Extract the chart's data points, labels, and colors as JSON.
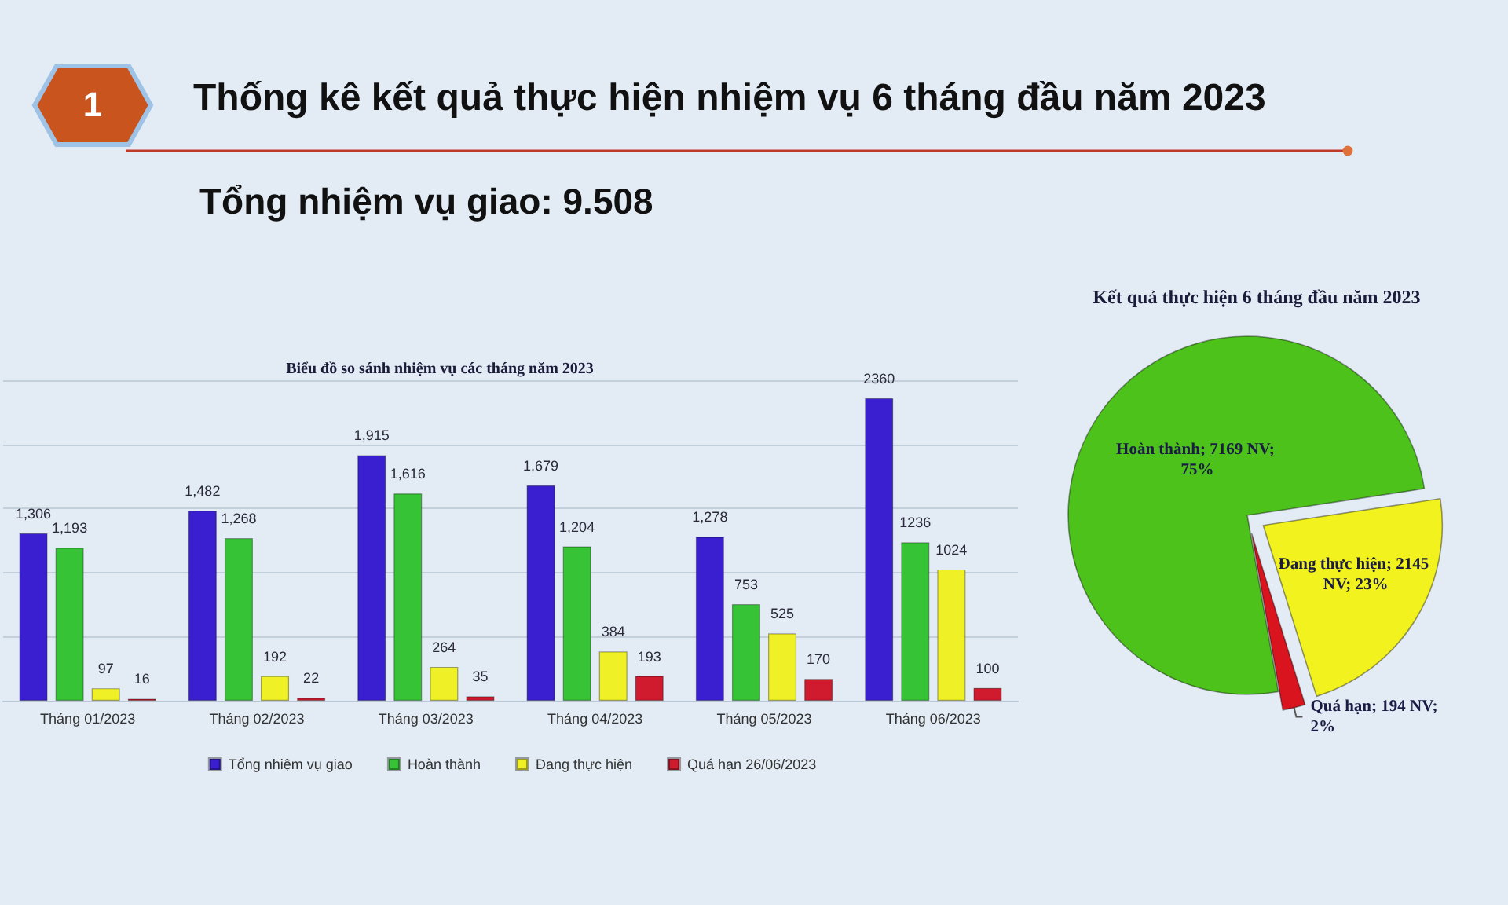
{
  "chart_data": [
    {
      "type": "other",
      "title": "Thống kê kết quả thực hiện nhiệm vụ 6 tháng đầu năm 2023",
      "subtitle": "Tổng nhiệm vụ giao: 9.508",
      "annotations": [
        "1"
      ]
    },
    {
      "type": "bar",
      "title": "Biểu đồ so sánh nhiệm vụ các tháng năm 2023",
      "categories": [
        "Tháng 01/2023",
        "Tháng 02/2023",
        "Tháng 03/2023",
        "Tháng 04/2023",
        "Tháng 05/2023",
        "Tháng 06/2023"
      ],
      "series": [
        {
          "name": "Tổng nhiệm vụ giao",
          "color": "#3a1fd1",
          "values": [
            1306,
            1482,
            1915,
            1679,
            1278,
            2360
          ],
          "value_labels": [
            "1,306",
            "1,482",
            "1,915",
            "1,679",
            "1,278",
            "2360"
          ]
        },
        {
          "name": "Hoàn thành",
          "color": "#36c436",
          "values": [
            1193,
            1268,
            1616,
            1204,
            753,
            1236
          ],
          "value_labels": [
            "1,193",
            "1,268",
            "1,616",
            "1,204",
            "753",
            "1236"
          ]
        },
        {
          "name": "Đang thực hiện",
          "color": "#f0f026",
          "values": [
            97,
            192,
            264,
            384,
            525,
            1024
          ],
          "value_labels": [
            "97",
            "192",
            "264",
            "384",
            "525",
            "1024"
          ]
        },
        {
          "name": "Quá hạn 26/06/2023",
          "color": "#cf1b2d",
          "values": [
            16,
            22,
            35,
            193,
            170,
            100
          ],
          "value_labels": [
            "16",
            "22",
            "35",
            "193",
            "170",
            "100"
          ]
        }
      ],
      "ylim": [
        0,
        2500
      ],
      "yticks": [
        {
          "value": 0,
          "label": null
        },
        {
          "value": 500,
          "label": null
        },
        {
          "value": 1000,
          "label": null
        },
        {
          "value": 1500,
          "label": null
        },
        {
          "value": 2000,
          "label": null
        },
        {
          "value": 2500,
          "label": null
        }
      ],
      "tick_labels": "x",
      "grid": "y",
      "legend": "bottom"
    },
    {
      "type": "pie",
      "title": "Kết quả thực hiện 6 tháng đầu năm 2023",
      "categories": [
        "Hoàn thành",
        "Đang thực hiện",
        "Quá hạn"
      ],
      "values": [
        7169,
        2145,
        194
      ],
      "colors": [
        "#4cc21a",
        "#f2f21e",
        "#d9141e"
      ],
      "value_labels": [
        "7169 NV; 75%",
        "2145 NV; 23%",
        "194 NV; 2%"
      ]
    }
  ]
}
